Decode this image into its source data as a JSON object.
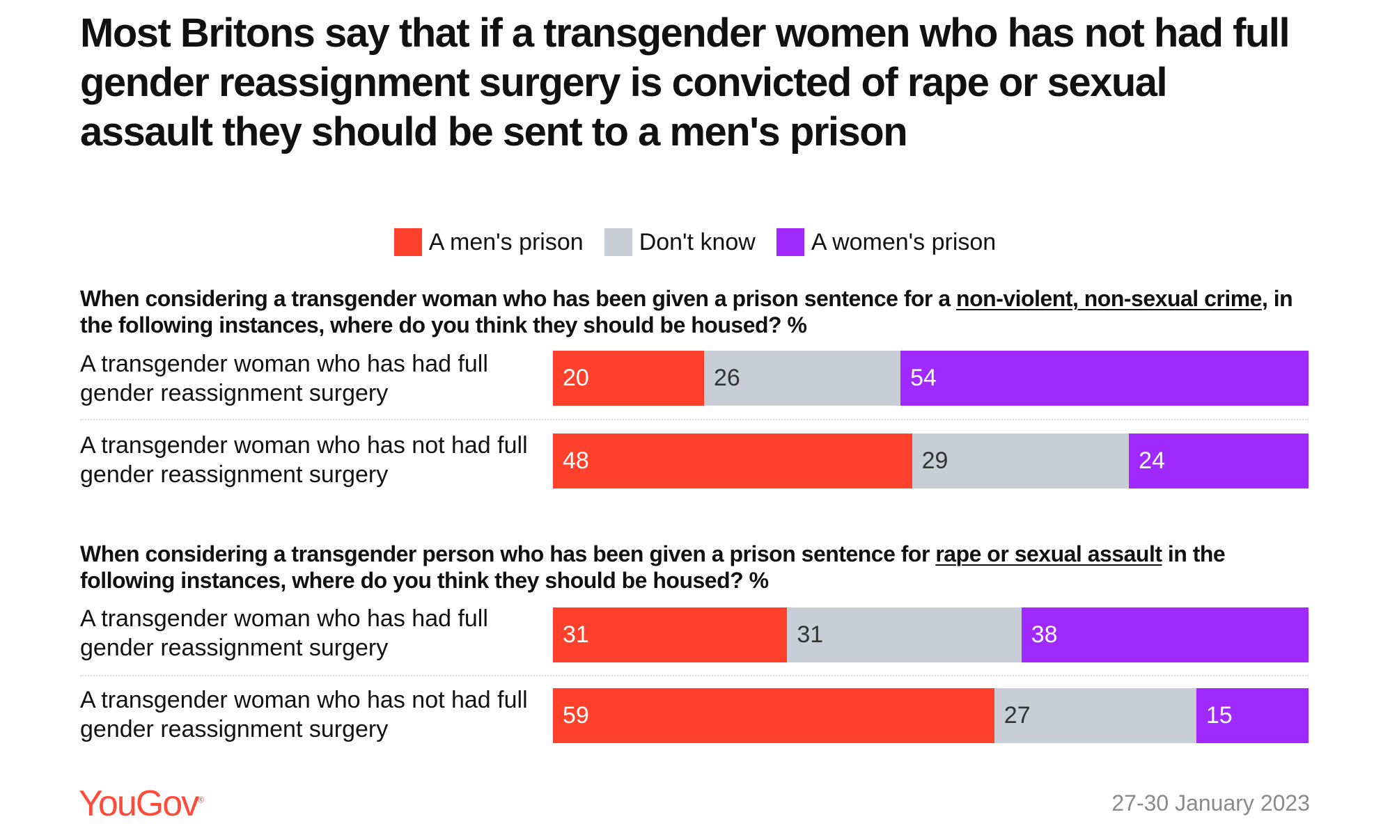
{
  "chart_data": {
    "type": "bar",
    "stacked": true,
    "orientation": "horizontal",
    "title": "Most Britons say that if a transgender women who has not had full gender reassignment surgery is convicted of rape or sexual assault they should be sent to a men's prison",
    "legend": [
      "A men's prison",
      "Don't know",
      "A women's prison"
    ],
    "legend_position": "top",
    "colors": [
      "#ff412c",
      "#c9cdd6",
      "#9f29ff"
    ],
    "label_colors": [
      "#ffffff",
      "#333333",
      "#ffffff"
    ],
    "panels": [
      {
        "subtitle_parts": [
          "When considering a transgender woman who has been given a prison sentence for a ",
          "non-violent, non-sexual crime",
          ", in the following instances, where do you think they should be housed? %"
        ],
        "categories": [
          "A transgender woman who has had full gender reassignment surgery",
          "A transgender woman who has not had full gender reassignment surgery"
        ],
        "series": [
          {
            "name": "A men's prison",
            "values": [
              20,
              48
            ]
          },
          {
            "name": "Don't know",
            "values": [
              26,
              29
            ]
          },
          {
            "name": "A women's prison",
            "values": [
              54,
              24
            ]
          }
        ]
      },
      {
        "subtitle_parts": [
          "When considering a transgender person who has been given a prison sentence for ",
          "rape or sexual assault",
          " in the following instances, where do you think they should be housed? %"
        ],
        "categories": [
          "A transgender woman who has had full gender reassignment surgery",
          "A transgender woman who has not had full gender reassignment surgery"
        ],
        "series": [
          {
            "name": "A men's prison",
            "values": [
              31,
              59
            ]
          },
          {
            "name": "Don't know",
            "values": [
              31,
              27
            ]
          },
          {
            "name": "A women's prison",
            "values": [
              38,
              15
            ]
          }
        ]
      }
    ]
  },
  "footer": {
    "logo": "YouGov",
    "date": "27-30 January 2023"
  }
}
